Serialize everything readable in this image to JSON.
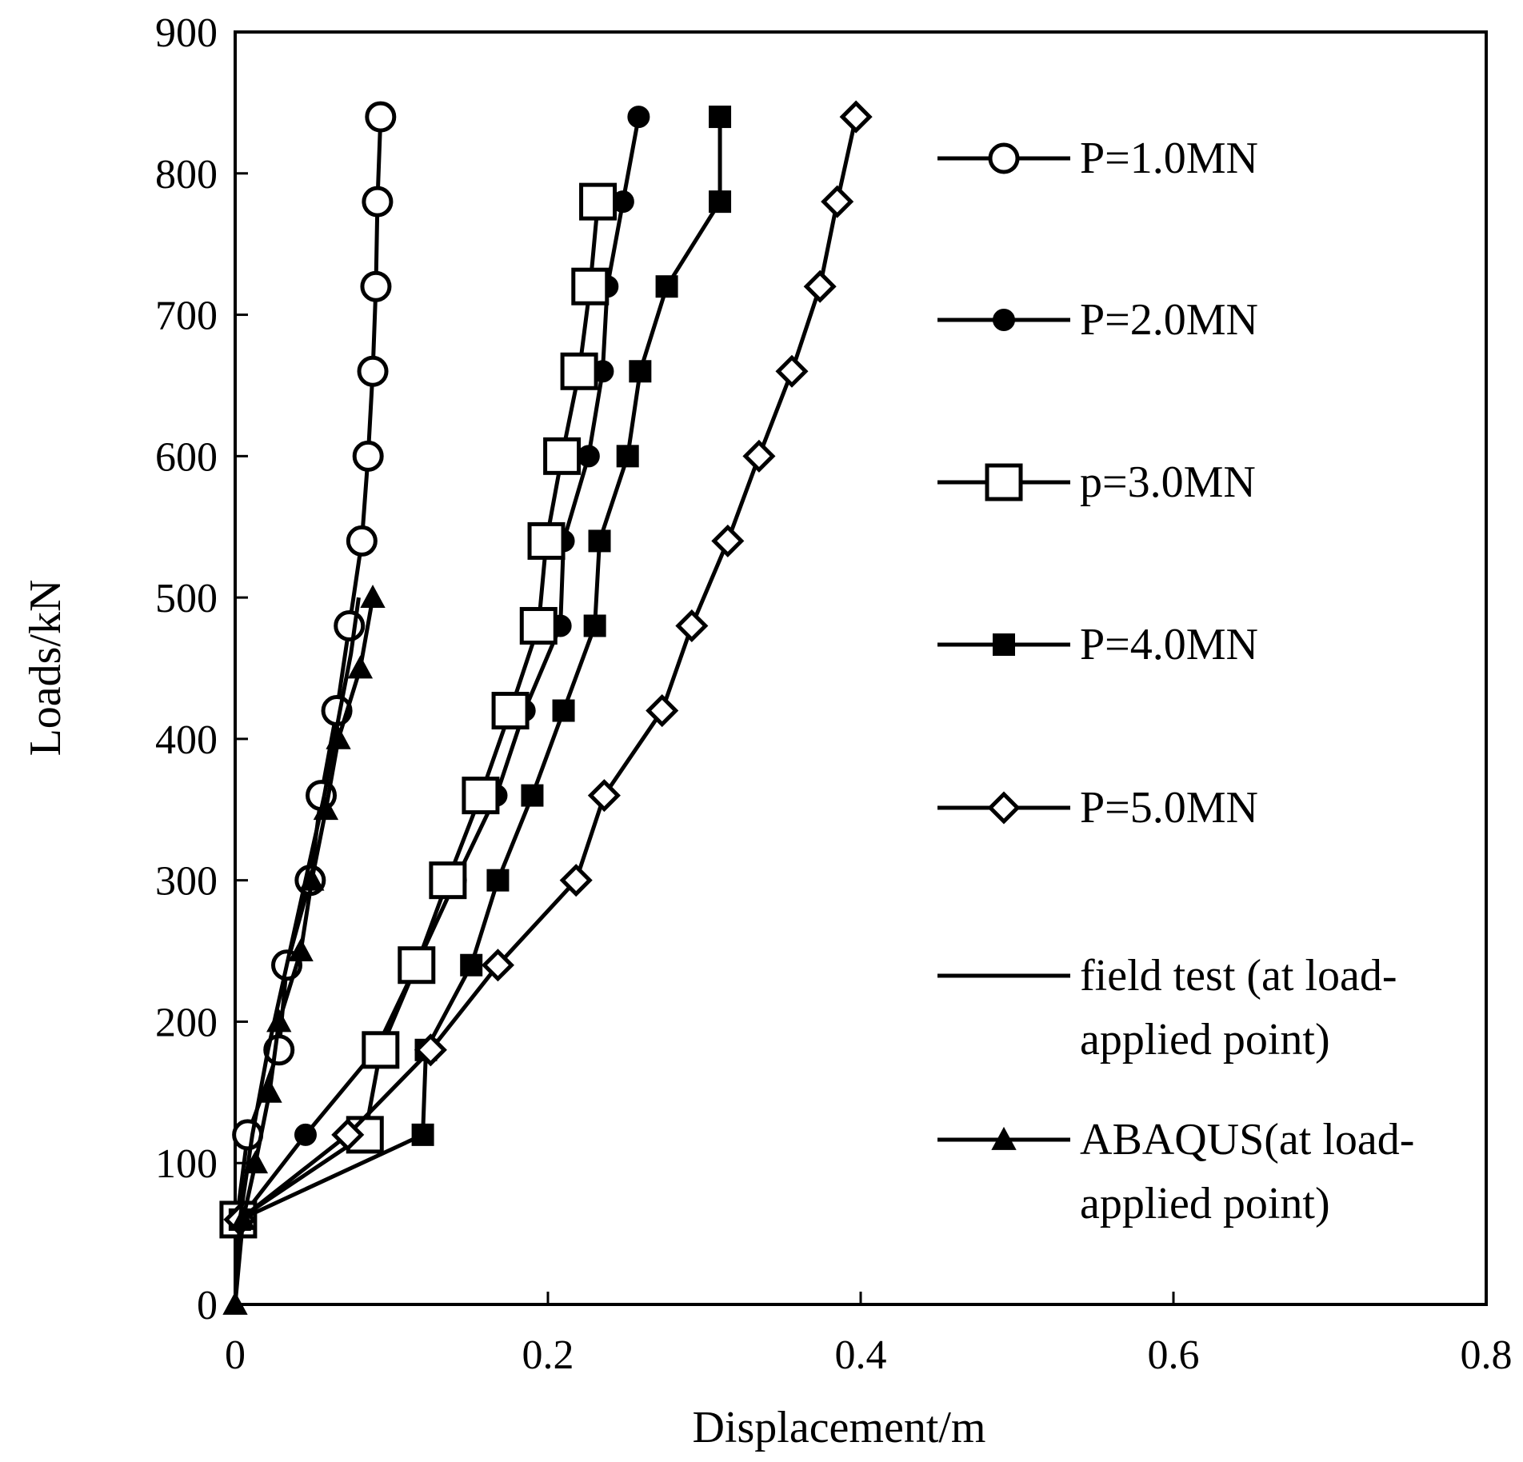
{
  "chart_data": {
    "type": "line",
    "title": "",
    "xlabel": "Displacement/m",
    "ylabel": "Loads/kN",
    "xlim": [
      0,
      0.8
    ],
    "ylim": [
      0,
      900
    ],
    "xticks": [
      "0",
      "0.2",
      "0.4",
      "0.6",
      "0.8"
    ],
    "yticks": [
      "0",
      "100",
      "200",
      "300",
      "400",
      "500",
      "600",
      "700",
      "800",
      "900"
    ],
    "grid": false,
    "legend_position": "right",
    "series": [
      {
        "name": "P=1.0MN",
        "legend_lines": [
          "P=1.0MN"
        ],
        "marker": "circle-open",
        "x": [
          0.001,
          0.008,
          0.028,
          0.033,
          0.048,
          0.055,
          0.065,
          0.073,
          0.081,
          0.085,
          0.088,
          0.09,
          0.091,
          0.093
        ],
        "y": [
          60,
          120,
          180,
          240,
          300,
          360,
          420,
          480,
          540,
          600,
          660,
          720,
          780,
          840
        ]
      },
      {
        "name": "P=2.0MN",
        "legend_lines": [
          "P=2.0MN"
        ],
        "marker": "circle-filled",
        "x": [
          0.003,
          0.045,
          0.09,
          0.116,
          0.141,
          0.167,
          0.185,
          0.208,
          0.21,
          0.226,
          0.235,
          0.238,
          0.248,
          0.258
        ],
        "y": [
          60,
          120,
          180,
          240,
          300,
          360,
          420,
          480,
          540,
          600,
          660,
          720,
          780,
          840
        ]
      },
      {
        "name": "p=3.0MN",
        "legend_lines": [
          "p=3.0MN"
        ],
        "marker": "square-open",
        "x": [
          0.002,
          0.083,
          0.093,
          0.116,
          0.136,
          0.157,
          0.176,
          0.194,
          0.199,
          0.209,
          0.22,
          0.227,
          0.232
        ],
        "y": [
          60,
          120,
          180,
          240,
          300,
          360,
          420,
          480,
          540,
          600,
          660,
          720,
          780
        ]
      },
      {
        "name": "P=4.0MN",
        "legend_lines": [
          "P=4.0MN"
        ],
        "marker": "square-filled",
        "x": [
          0.003,
          0.12,
          0.122,
          0.151,
          0.168,
          0.19,
          0.21,
          0.23,
          0.233,
          0.251,
          0.259,
          0.276,
          0.31,
          0.31
        ],
        "y": [
          60,
          120,
          180,
          240,
          300,
          360,
          420,
          480,
          540,
          600,
          660,
          720,
          780,
          840
        ]
      },
      {
        "name": "P=5.0MN",
        "legend_lines": [
          "P=5.0MN"
        ],
        "marker": "diamond-open",
        "x": [
          0.003,
          0.072,
          0.125,
          0.168,
          0.218,
          0.236,
          0.273,
          0.292,
          0.315,
          0.335,
          0.356,
          0.374,
          0.385,
          0.397
        ],
        "y": [
          60,
          120,
          180,
          240,
          300,
          360,
          420,
          480,
          540,
          600,
          660,
          720,
          780,
          840
        ]
      },
      {
        "name": "field test (at load-applied point)",
        "legend_lines": [
          "field test (at load-",
          "applied point)"
        ],
        "marker": "none",
        "x": [
          0,
          0.003,
          0.011,
          0.021,
          0.033,
          0.045,
          0.057,
          0.067,
          0.074,
          0.079
        ],
        "y": [
          0,
          60,
          120,
          180,
          240,
          300,
          360,
          420,
          460,
          500
        ]
      },
      {
        "name": "ABAQUS(at load-applied point)",
        "legend_lines": [
          "ABAQUS(at load-",
          "applied point)"
        ],
        "marker": "triangle-filled",
        "x": [
          0,
          0.005,
          0.013,
          0.022,
          0.028,
          0.042,
          0.049,
          0.058,
          0.066,
          0.08,
          0.088
        ],
        "y": [
          0,
          60,
          100,
          150,
          200,
          250,
          300,
          350,
          400,
          450,
          500
        ]
      }
    ]
  }
}
